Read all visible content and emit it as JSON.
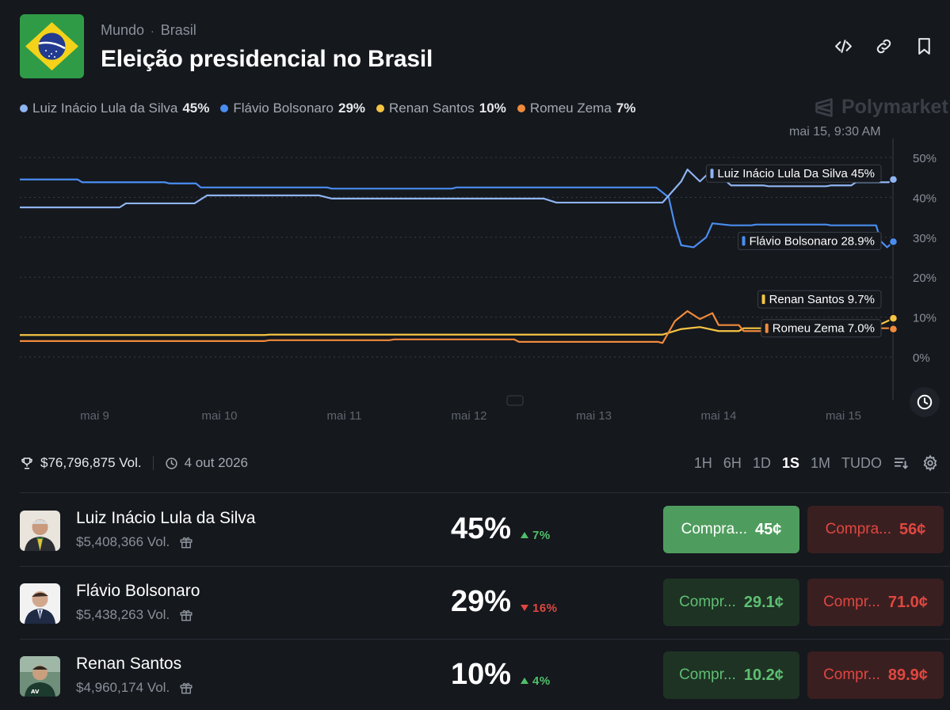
{
  "header": {
    "breadcrumb": [
      "Mundo",
      "Brasil"
    ],
    "title": "Eleição presidencial no Brasil",
    "actions": [
      "embed-icon",
      "link-icon",
      "bookmark-icon"
    ]
  },
  "legend": [
    {
      "name": "Luiz Inácio Lula da Silva",
      "pct": "45%",
      "color": "#8fb4f2"
    },
    {
      "name": "Flávio Bolsonaro",
      "pct": "29%",
      "color": "#4a8df0"
    },
    {
      "name": "Renan Santos",
      "pct": "10%",
      "color": "#f5c443"
    },
    {
      "name": "Romeu Zema",
      "pct": "7%",
      "color": "#f08a3c"
    }
  ],
  "watermark": "Polymarket",
  "timestamp": "mai 15, 9:30 AM",
  "chart_data": {
    "type": "line",
    "x_ticks": [
      "mai 9",
      "mai 10",
      "mai 11",
      "mai 12",
      "mai 13",
      "mai 14",
      "mai 15"
    ],
    "x_range": [
      "mai 8",
      "mai 15"
    ],
    "ylim": [
      0,
      50
    ],
    "y_ticks": [
      "50%",
      "40%",
      "30%",
      "20%",
      "10%",
      "0%"
    ],
    "grid": true,
    "series": [
      {
        "name": "Luiz Inácio Lula Da Silva",
        "label_value": "45%",
        "color": "#8fb4f2",
        "points": [
          [
            0,
            37.5
          ],
          [
            0.8,
            37.5
          ],
          [
            0.85,
            38.5
          ],
          [
            1.4,
            38.5
          ],
          [
            1.5,
            40.5
          ],
          [
            2.4,
            40.5
          ],
          [
            2.5,
            39.7
          ],
          [
            4.2,
            39.7
          ],
          [
            4.3,
            38.7
          ],
          [
            5.15,
            38.7
          ],
          [
            5.3,
            44
          ],
          [
            5.35,
            47
          ],
          [
            5.45,
            44
          ],
          [
            5.55,
            47
          ],
          [
            5.7,
            43
          ],
          [
            6.0,
            42.8
          ],
          [
            6.5,
            43
          ],
          [
            6.7,
            43.8
          ],
          [
            7.0,
            44.5
          ]
        ]
      },
      {
        "name": "Flávio Bolsonaro",
        "label_value": "28.9%",
        "color": "#4a8df0",
        "points": [
          [
            0,
            44.5
          ],
          [
            0.5,
            43.8
          ],
          [
            1.2,
            43.5
          ],
          [
            1.45,
            42.5
          ],
          [
            2.0,
            42.5
          ],
          [
            2.5,
            42.2
          ],
          [
            3.5,
            42.5
          ],
          [
            4.5,
            42.5
          ],
          [
            5.1,
            42.5
          ],
          [
            5.2,
            40
          ],
          [
            5.25,
            33
          ],
          [
            5.3,
            28
          ],
          [
            5.4,
            27.5
          ],
          [
            5.5,
            30
          ],
          [
            5.55,
            33.5
          ],
          [
            5.7,
            33
          ],
          [
            5.9,
            33.2
          ],
          [
            6.5,
            33
          ],
          [
            6.9,
            29
          ],
          [
            6.95,
            27.5
          ],
          [
            7.0,
            28.9
          ]
        ]
      },
      {
        "name": "Renan Santos",
        "label_value": "9.7%",
        "color": "#f5c443",
        "points": [
          [
            0,
            5.5
          ],
          [
            1.0,
            5.5
          ],
          [
            2.0,
            5.6
          ],
          [
            3.0,
            5.6
          ],
          [
            4.0,
            5.6
          ],
          [
            5.15,
            5.6
          ],
          [
            5.3,
            7
          ],
          [
            5.45,
            7.5
          ],
          [
            5.6,
            6.5
          ],
          [
            5.8,
            7.2
          ],
          [
            6.0,
            7
          ],
          [
            6.5,
            6.8
          ],
          [
            6.85,
            7.5
          ],
          [
            7.0,
            9.7
          ]
        ]
      },
      {
        "name": "Romeu Zema",
        "label_value": "7.0%",
        "color": "#f08a3c",
        "points": [
          [
            0,
            4
          ],
          [
            1.0,
            4
          ],
          [
            2.0,
            4.2
          ],
          [
            3.0,
            4.4
          ],
          [
            4.0,
            3.8
          ],
          [
            5.15,
            3.5
          ],
          [
            5.25,
            9
          ],
          [
            5.35,
            11.5
          ],
          [
            5.45,
            9.5
          ],
          [
            5.55,
            11
          ],
          [
            5.6,
            8
          ],
          [
            5.8,
            6.5
          ],
          [
            6.0,
            6.2
          ],
          [
            6.3,
            7
          ],
          [
            6.8,
            7.2
          ],
          [
            7.0,
            7.0
          ]
        ]
      }
    ]
  },
  "stats": {
    "volume": "$76,796,875 Vol.",
    "end_date": "4 out 2026"
  },
  "ranges": [
    {
      "label": "1H",
      "active": false
    },
    {
      "label": "6H",
      "active": false
    },
    {
      "label": "1D",
      "active": false
    },
    {
      "label": "1S",
      "active": true
    },
    {
      "label": "1M",
      "active": false
    },
    {
      "label": "TUDO",
      "active": false
    }
  ],
  "outcomes": [
    {
      "name": "Luiz Inácio Lula da Silva",
      "volume": "$5,408,366 Vol.",
      "probability": "45%",
      "change": "7%",
      "direction": "up",
      "yes_label": "Compra...",
      "yes_price": "45¢",
      "no_label": "Compra...",
      "no_price": "56¢"
    },
    {
      "name": "Flávio Bolsonaro",
      "volume": "$5,438,263 Vol.",
      "probability": "29%",
      "change": "16%",
      "direction": "down",
      "yes_label": "Compr...",
      "yes_price": "29.1¢",
      "no_label": "Compr...",
      "no_price": "71.0¢"
    },
    {
      "name": "Renan Santos",
      "volume": "$4,960,174 Vol.",
      "probability": "10%",
      "change": "4%",
      "direction": "up",
      "yes_label": "Compr...",
      "yes_price": "10.2¢",
      "no_label": "Compr...",
      "no_price": "89.9¢"
    }
  ]
}
